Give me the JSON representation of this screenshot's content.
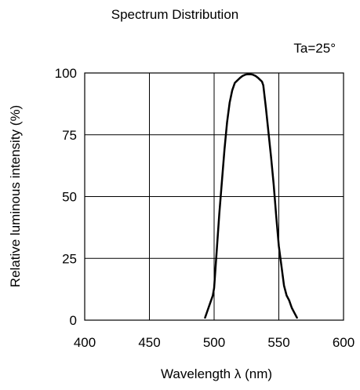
{
  "chart_data": {
    "type": "line",
    "title": "Spectrum Distribution",
    "annotation": "Ta=25°",
    "xlabel": "Wavelength  λ (nm)",
    "ylabel": "Relative luminous intensity  (%)",
    "xlim": [
      400,
      600
    ],
    "ylim": [
      0,
      100
    ],
    "x_ticks": [
      400,
      450,
      500,
      550,
      600
    ],
    "y_ticks": [
      0,
      25,
      50,
      75,
      100
    ],
    "grid": true,
    "series": [
      {
        "x": [
          493,
          495,
          497,
          499,
          500,
          502,
          504,
          506,
          508,
          510,
          512,
          514,
          516,
          518,
          519,
          520,
          522,
          524,
          526,
          528,
          530,
          532,
          534,
          536,
          537,
          538,
          540,
          542,
          544,
          546,
          548,
          550,
          552,
          554,
          556,
          558,
          560,
          562,
          564
        ],
        "y": [
          1,
          4,
          7,
          10,
          13,
          28,
          43,
          56,
          69,
          80,
          88,
          93,
          96,
          97,
          97.5,
          98,
          98.8,
          99.3,
          99.5,
          99.5,
          99.3,
          98.8,
          98,
          97,
          96.5,
          95,
          86,
          76,
          66,
          55,
          42,
          30,
          22,
          14,
          10,
          8,
          5,
          3,
          1
        ]
      }
    ]
  }
}
